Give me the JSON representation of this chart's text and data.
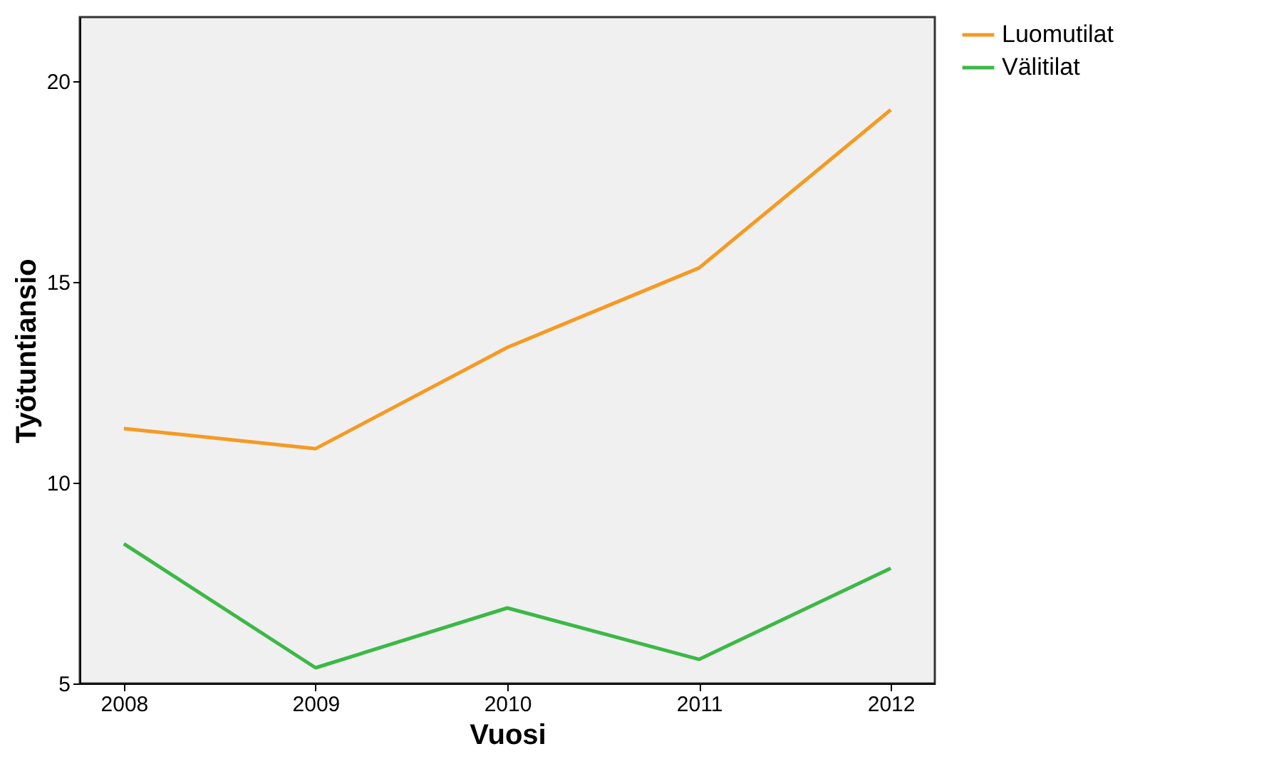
{
  "chart_data": {
    "type": "line",
    "xlabel": "Vuosi",
    "ylabel": "Työtuntiansio",
    "x": [
      2008,
      2009,
      2010,
      2011,
      2012
    ],
    "series": [
      {
        "name": "Luomutilat",
        "color": "#f59a23",
        "values": [
          11.35,
          10.85,
          13.37,
          15.35,
          19.29
        ]
      },
      {
        "name": "Välitilat",
        "color": "#3cb846",
        "values": [
          8.48,
          5.39,
          6.88,
          5.6,
          7.87
        ]
      }
    ],
    "xlim": [
      2007.77,
      2012.23
    ],
    "xticks": [
      2008,
      2009,
      2010,
      2011,
      2012
    ],
    "ylim": [
      5,
      21.6
    ],
    "yticks": [
      5,
      10,
      15,
      20
    ],
    "grid": false,
    "legend": "top right",
    "marker": "none",
    "line_style": "solid"
  }
}
